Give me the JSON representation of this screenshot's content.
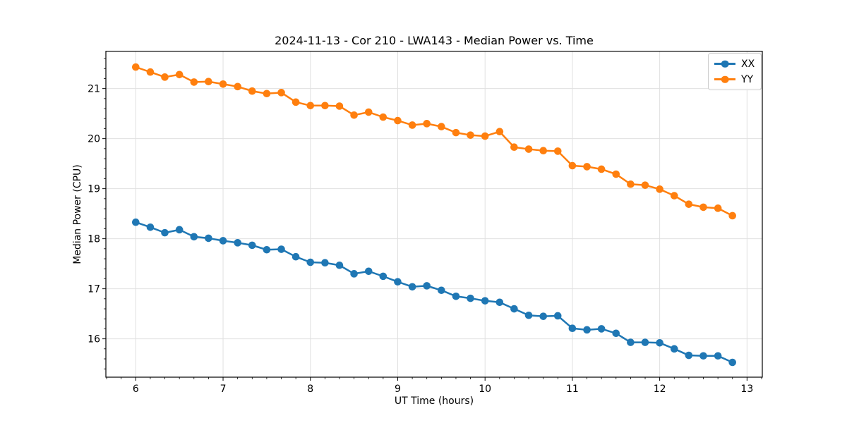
{
  "figure": {
    "title": "2024-11-13 - Cor 210 - LWA143 - Median Power vs. Time"
  },
  "chart_data": {
    "type": "line",
    "title": "2024-11-13 - Cor 210 - LWA143 - Median Power vs. Time",
    "xlabel": "UT Time (hours)",
    "ylabel": "Median Power (CPU)",
    "xlim": [
      5.658,
      13.175
    ],
    "ylim": [
      15.234,
      21.746
    ],
    "x_ticks": [
      6,
      7,
      8,
      9,
      10,
      11,
      12,
      13
    ],
    "y_ticks": [
      16,
      17,
      18,
      19,
      20,
      21
    ],
    "x_minor_step": 0.16667,
    "y_minor_step": 0.2,
    "grid": "major-only",
    "grid_color": "#e0e0e0",
    "legend_position": "upper right",
    "marker": "o",
    "x": [
      6.0,
      6.167,
      6.333,
      6.5,
      6.667,
      6.833,
      7.0,
      7.167,
      7.333,
      7.5,
      7.667,
      7.833,
      8.0,
      8.167,
      8.333,
      8.5,
      8.667,
      8.833,
      9.0,
      9.167,
      9.333,
      9.5,
      9.667,
      9.833,
      10.0,
      10.167,
      10.333,
      10.5,
      10.667,
      10.833,
      11.0,
      11.167,
      11.333,
      11.5,
      11.667,
      11.833,
      12.0,
      12.167,
      12.333,
      12.5,
      12.667,
      12.833
    ],
    "series": [
      {
        "name": "XX",
        "color": "#1f77b4",
        "values": [
          18.33,
          18.23,
          18.12,
          18.18,
          18.04,
          18.01,
          17.96,
          17.92,
          17.87,
          17.78,
          17.79,
          17.64,
          17.53,
          17.52,
          17.47,
          17.3,
          17.35,
          17.25,
          17.14,
          17.04,
          17.06,
          16.97,
          16.85,
          16.81,
          16.76,
          16.73,
          16.6,
          16.47,
          16.45,
          16.46,
          16.21,
          16.18,
          16.2,
          16.11,
          15.93,
          15.93,
          15.92,
          15.8,
          15.67,
          15.66,
          15.66,
          15.53
        ]
      },
      {
        "name": "YY",
        "color": "#ff7f0e",
        "values": [
          21.43,
          21.33,
          21.23,
          21.28,
          21.13,
          21.14,
          21.09,
          21.04,
          20.95,
          20.9,
          20.92,
          20.73,
          20.66,
          20.66,
          20.65,
          20.47,
          20.53,
          20.43,
          20.36,
          20.27,
          20.3,
          20.24,
          20.12,
          20.07,
          20.05,
          20.14,
          19.83,
          19.79,
          19.76,
          19.75,
          19.46,
          19.44,
          19.39,
          19.29,
          19.09,
          19.07,
          18.99,
          18.86,
          18.69,
          18.63,
          18.61,
          18.46
        ]
      }
    ]
  }
}
